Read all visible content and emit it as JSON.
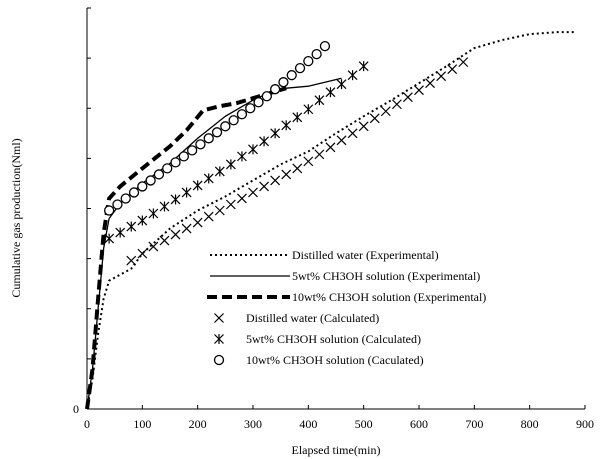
{
  "chart_data": {
    "type": "scatter",
    "title": "",
    "xlabel": "Elapsed time(min)",
    "ylabel": "Cumulative gas production(Nml)",
    "xlim": [
      0,
      900
    ],
    "x_ticks": [
      "0",
      "100",
      "200",
      "300",
      "400",
      "500",
      "600",
      "700",
      "800",
      "900"
    ],
    "ylim": [
      0,
      400
    ],
    "y_ticks": [
      "0"
    ],
    "legend_position": "lower-right",
    "grid": false,
    "series": [
      {
        "name": "Distilled water (Experimental)",
        "style": "dotted-line",
        "color": "#000000",
        "points": [
          [
            0,
            0
          ],
          [
            10,
            30
          ],
          [
            20,
            75
          ],
          [
            30,
            110
          ],
          [
            40,
            128
          ],
          [
            60,
            134
          ],
          [
            80,
            140
          ],
          [
            100,
            155
          ],
          [
            150,
            180
          ],
          [
            200,
            198
          ],
          [
            250,
            212
          ],
          [
            300,
            228
          ],
          [
            350,
            244
          ],
          [
            400,
            257
          ],
          [
            450,
            275
          ],
          [
            500,
            292
          ],
          [
            550,
            308
          ],
          [
            600,
            325
          ],
          [
            650,
            342
          ],
          [
            700,
            360
          ],
          [
            750,
            368
          ],
          [
            800,
            374
          ],
          [
            850,
            376
          ],
          [
            880,
            376
          ]
        ]
      },
      {
        "name": "5wt% CH3OH solution (Experimental)",
        "style": "solid-line",
        "color": "#000000",
        "points": [
          [
            0,
            0
          ],
          [
            10,
            40
          ],
          [
            20,
            100
          ],
          [
            30,
            160
          ],
          [
            40,
            190
          ],
          [
            60,
            205
          ],
          [
            80,
            215
          ],
          [
            100,
            225
          ],
          [
            150,
            245
          ],
          [
            200,
            270
          ],
          [
            250,
            292
          ],
          [
            300,
            308
          ],
          [
            340,
            318
          ],
          [
            360,
            320
          ],
          [
            400,
            322
          ],
          [
            460,
            330
          ]
        ]
      },
      {
        "name": "10wt% CH3OH solution (Experimental)",
        "style": "dashed-line",
        "color": "#000000",
        "points": [
          [
            0,
            0
          ],
          [
            10,
            40
          ],
          [
            20,
            110
          ],
          [
            30,
            175
          ],
          [
            40,
            210
          ],
          [
            60,
            222
          ],
          [
            100,
            240
          ],
          [
            150,
            262
          ],
          [
            180,
            278
          ],
          [
            210,
            298
          ],
          [
            240,
            302
          ],
          [
            270,
            305
          ],
          [
            300,
            310
          ],
          [
            330,
            315
          ],
          [
            360,
            320
          ]
        ]
      },
      {
        "name": "Distilled water (Calculated)",
        "style": "marker-x",
        "color": "#000000",
        "points": [
          [
            80,
            148
          ],
          [
            100,
            155
          ],
          [
            120,
            162
          ],
          [
            140,
            168
          ],
          [
            160,
            174
          ],
          [
            180,
            180
          ],
          [
            200,
            186
          ],
          [
            220,
            192
          ],
          [
            240,
            198
          ],
          [
            260,
            204
          ],
          [
            280,
            210
          ],
          [
            300,
            216
          ],
          [
            320,
            222
          ],
          [
            340,
            228
          ],
          [
            360,
            234
          ],
          [
            380,
            240
          ],
          [
            400,
            247
          ],
          [
            420,
            254
          ],
          [
            440,
            261
          ],
          [
            460,
            268
          ],
          [
            480,
            275
          ],
          [
            500,
            282
          ],
          [
            520,
            290
          ],
          [
            540,
            297
          ],
          [
            560,
            304
          ],
          [
            580,
            311
          ],
          [
            600,
            318
          ],
          [
            620,
            325
          ],
          [
            640,
            332
          ],
          [
            660,
            339
          ],
          [
            680,
            346
          ]
        ]
      },
      {
        "name": "5wt% CH3OH solution (Calculated)",
        "style": "marker-star",
        "color": "#000000",
        "points": [
          [
            40,
            170
          ],
          [
            60,
            176
          ],
          [
            80,
            182
          ],
          [
            100,
            188
          ],
          [
            120,
            195
          ],
          [
            140,
            202
          ],
          [
            160,
            209
          ],
          [
            180,
            216
          ],
          [
            200,
            223
          ],
          [
            220,
            230
          ],
          [
            240,
            237
          ],
          [
            260,
            244
          ],
          [
            280,
            252
          ],
          [
            300,
            259
          ],
          [
            320,
            267
          ],
          [
            340,
            275
          ],
          [
            360,
            283
          ],
          [
            380,
            291
          ],
          [
            400,
            299
          ],
          [
            420,
            308
          ],
          [
            440,
            316
          ],
          [
            460,
            324
          ],
          [
            480,
            333
          ],
          [
            500,
            342
          ]
        ]
      },
      {
        "name": "10wt% CH3OH solution (Caculated)",
        "style": "marker-circle",
        "color": "#000000",
        "points": [
          [
            40,
            198
          ],
          [
            55,
            204
          ],
          [
            70,
            210
          ],
          [
            85,
            216
          ],
          [
            100,
            222
          ],
          [
            115,
            228
          ],
          [
            130,
            234
          ],
          [
            145,
            240
          ],
          [
            160,
            246
          ],
          [
            175,
            252
          ],
          [
            190,
            258
          ],
          [
            205,
            264
          ],
          [
            220,
            270
          ],
          [
            235,
            276
          ],
          [
            250,
            282
          ],
          [
            265,
            288
          ],
          [
            280,
            294
          ],
          [
            295,
            300
          ],
          [
            310,
            306
          ],
          [
            325,
            312
          ],
          [
            340,
            319
          ],
          [
            355,
            326
          ],
          [
            370,
            333
          ],
          [
            385,
            340
          ],
          [
            400,
            347
          ],
          [
            415,
            354
          ],
          [
            430,
            362
          ]
        ]
      }
    ]
  }
}
